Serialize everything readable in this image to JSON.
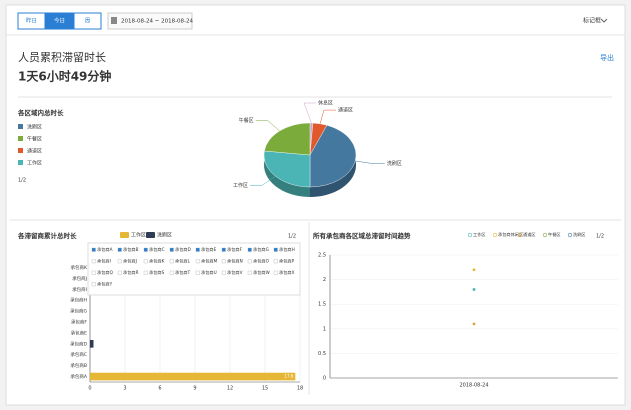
{
  "toolbar": {
    "buttons": [
      "昨日",
      "今日",
      "周"
    ],
    "date_range": "2018-08-24 ~ 2018-08-24",
    "user": "标记框"
  },
  "header": {
    "title": "人员累积滞留时长",
    "export": "导出",
    "total": "1天6小时49分钟"
  },
  "chart_data": [
    {
      "type": "pie",
      "title": "各区域内总时长",
      "categories": [
        "洗刷区",
        "午餐区",
        "通道区",
        "工作区",
        "休息区"
      ],
      "values": [
        44,
        23,
        5,
        27,
        1
      ],
      "colors": [
        "#44789f",
        "#7aab3b",
        "#e0582c",
        "#4bb5b6",
        "#c9a0c9"
      ],
      "legend_page": "1/2"
    },
    {
      "type": "hbar",
      "title": "各滞留商累计总时长",
      "categories": [
        "承包商A",
        "承包商B",
        "承包商C",
        "承包商D",
        "承包商E",
        "承包商F",
        "承包商G",
        "承包商H",
        "承包商I",
        "承包商J",
        "承包商K"
      ],
      "series": [
        {
          "name": "工作区",
          "color": "#e6b636",
          "values": [
            17.6,
            0,
            0,
            0,
            0,
            0,
            0,
            0,
            0,
            0,
            0
          ]
        },
        {
          "name": "洗刷区",
          "color": "#2f3b55",
          "values": [
            0,
            0,
            0,
            0.3,
            0,
            0,
            0,
            0,
            0,
            0,
            0
          ]
        }
      ],
      "xlim": [
        0,
        18
      ],
      "xticks": [
        0,
        3,
        6,
        9,
        12,
        15,
        18
      ],
      "legend_page": "1/2",
      "filter_items": [
        "承包商A",
        "承包商B",
        "承包商C",
        "承包商D",
        "承包商E",
        "承包商F",
        "承包商G",
        "承包商H",
        "承包商I",
        "承包商J",
        "承包商K",
        "承包商L",
        "承包商M",
        "承包商N",
        "承包商O",
        "承包商P",
        "承包商Q",
        "承包商R",
        "承包商S",
        "承包商T",
        "承包商U",
        "承包商V",
        "承包商W",
        "承包商X",
        "承包商Y"
      ]
    },
    {
      "type": "line",
      "title": "所有承包商各区域总滞留时间趋势",
      "x": [
        "2018-08-24"
      ],
      "series": [
        {
          "name": "工作区",
          "color": "#4bb5b6",
          "values": [
            1.8
          ]
        },
        {
          "name": "承包商休闲区",
          "color": "#e6b636",
          "values": [
            2.2
          ]
        },
        {
          "name": "通道区",
          "color": "#e0a03c",
          "values": [
            1.1
          ]
        },
        {
          "name": "午餐区",
          "color": "#7aab3b",
          "values": [
            null
          ]
        },
        {
          "name": "洗刷区",
          "color": "#44789f",
          "values": [
            null
          ]
        }
      ],
      "ylim": [
        0,
        2.5
      ],
      "yticks": [
        0,
        0.5,
        1,
        1.5,
        2,
        2.5
      ],
      "legend_page": "1/2"
    }
  ]
}
